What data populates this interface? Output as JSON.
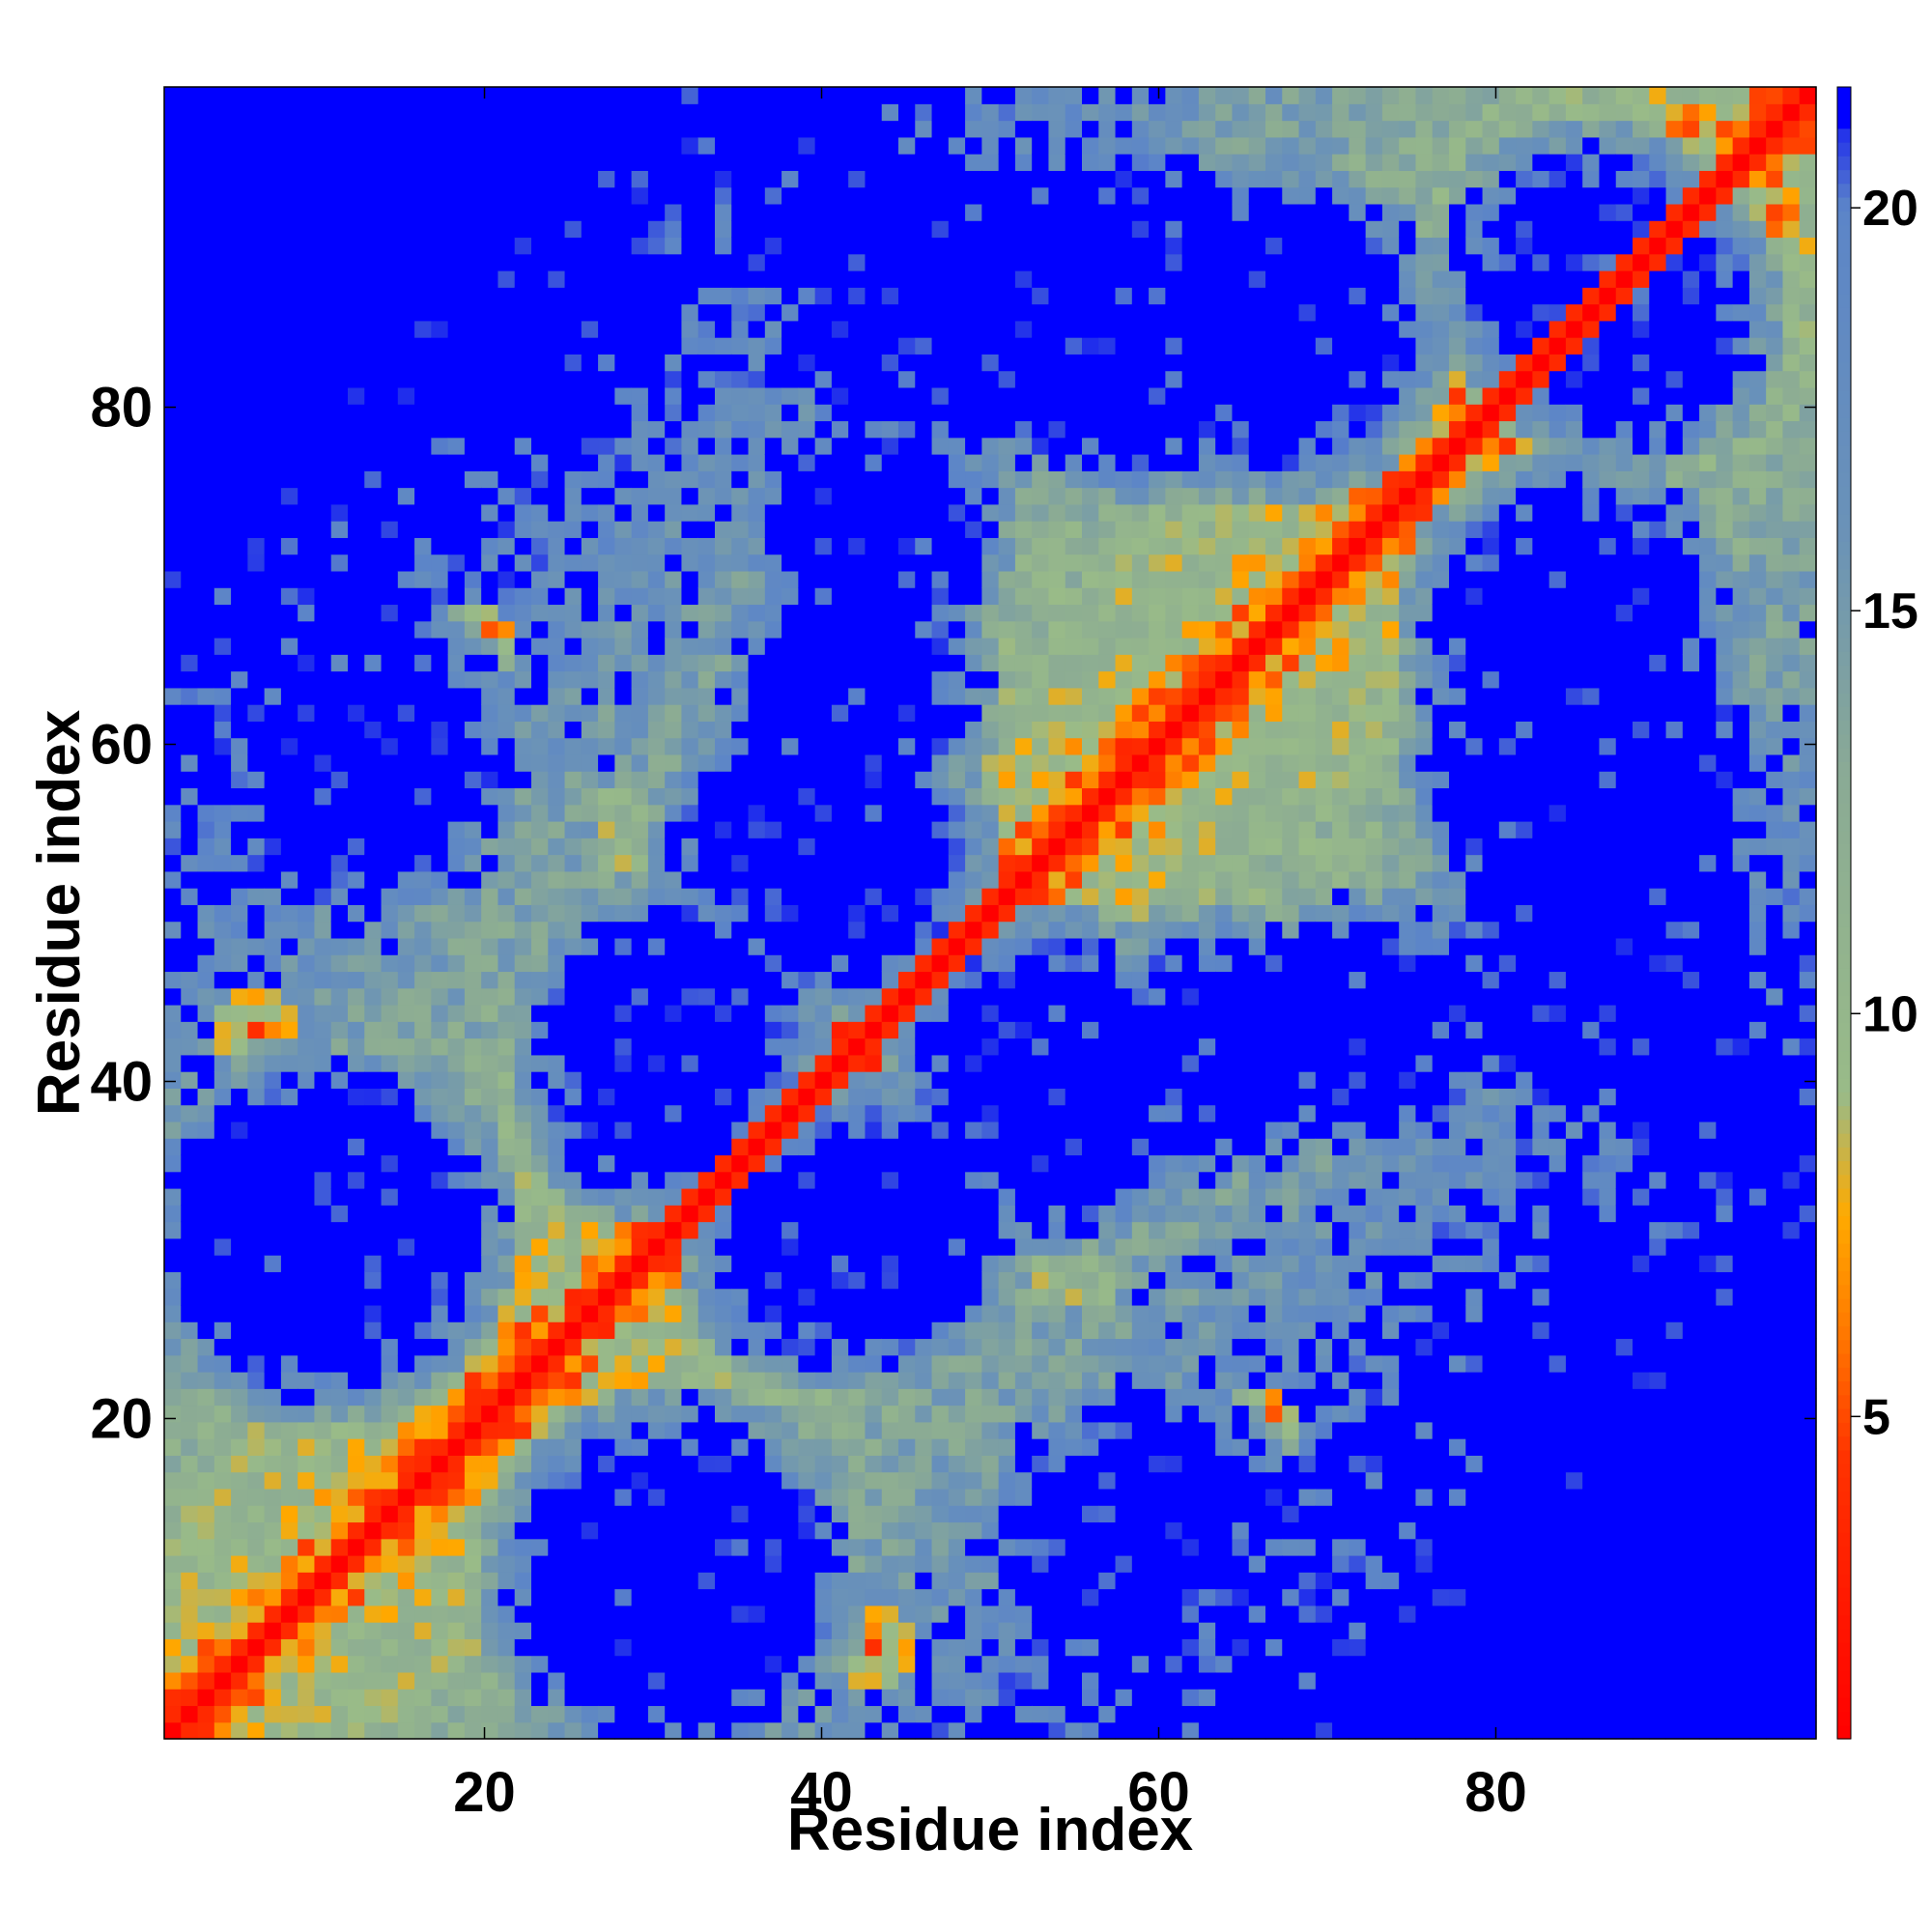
{
  "chart_data": {
    "type": "heatmap",
    "title": "",
    "xlabel": "Residue index",
    "ylabel": "Residue index",
    "n_residues": 99,
    "xlim": [
      1,
      99
    ],
    "ylim": [
      1,
      99
    ],
    "x_ticks": [
      20,
      40,
      60,
      80
    ],
    "y_ticks": [
      20,
      40,
      60,
      80
    ],
    "colorbar": {
      "ticks": [
        5,
        10,
        15,
        20
      ],
      "range": [
        1,
        21.5
      ],
      "over_color": "#0000ff",
      "stops": [
        {
          "value": 1.0,
          "color": "#ff0000"
        },
        {
          "value": 4.5,
          "color": "#ff3300"
        },
        {
          "value": 6.0,
          "color": "#ff7700"
        },
        {
          "value": 7.5,
          "color": "#ffaa00"
        },
        {
          "value": 9.0,
          "color": "#99bb88"
        },
        {
          "value": 13.0,
          "color": "#8aaa95"
        },
        {
          "value": 16.0,
          "color": "#6a92b8"
        },
        {
          "value": 20.0,
          "color": "#5c85c8"
        },
        {
          "value": 21.5,
          "color": "#0000ff"
        }
      ]
    },
    "diagonal_band": [
      {
        "center": 8,
        "halfwidth": 3.2
      },
      {
        "center": 19,
        "halfwidth": 3.5
      },
      {
        "center": 66,
        "halfwidth": 3.5
      },
      {
        "center": 84,
        "halfwidth": 2.2
      }
    ],
    "antidiagonal_segments": [
      {
        "from": [
          30,
          54
        ],
        "to": [
          54,
          30
        ]
      }
    ],
    "high_distance_voids": [
      {
        "x": 24,
        "y": 87,
        "r": 7
      },
      {
        "x": 47,
        "y": 87,
        "r": 8
      },
      {
        "x": 67,
        "y": 85,
        "r": 7
      },
      {
        "x": 88,
        "y": 86,
        "r": 6
      },
      {
        "x": 14,
        "y": 60,
        "r": 5
      },
      {
        "x": 42,
        "y": 64,
        "r": 5
      },
      {
        "x": 39,
        "y": 54,
        "r": 6
      },
      {
        "x": 86,
        "y": 58,
        "r": 8
      },
      {
        "x": 31,
        "y": 43,
        "r": 6
      },
      {
        "x": 53,
        "y": 41,
        "r": 6
      },
      {
        "x": 73,
        "y": 43,
        "r": 5
      },
      {
        "x": 93,
        "y": 40,
        "r": 5
      },
      {
        "x": 9,
        "y": 29,
        "r": 6
      },
      {
        "x": 40,
        "y": 30,
        "r": 5
      },
      {
        "x": 87,
        "y": 22,
        "r": 8
      },
      {
        "x": 31,
        "y": 10,
        "r": 8
      },
      {
        "x": 58,
        "y": 12,
        "r": 6
      },
      {
        "x": 92,
        "y": 7,
        "r": 7
      }
    ],
    "close_contact_patches": [
      {
        "x": 6,
        "y": 43,
        "r": 2.5
      },
      {
        "x": 43,
        "y": 6,
        "r": 2.5
      },
      {
        "x": 19,
        "y": 66,
        "r": 2.5
      },
      {
        "x": 66,
        "y": 19,
        "r": 2.5
      },
      {
        "x": 85,
        "y": 71,
        "r": 2.5
      },
      {
        "x": 71,
        "y": 85,
        "r": 2.5
      },
      {
        "x": 91,
        "y": 97,
        "r": 2.0
      },
      {
        "x": 97,
        "y": 91,
        "r": 2.0
      }
    ]
  }
}
